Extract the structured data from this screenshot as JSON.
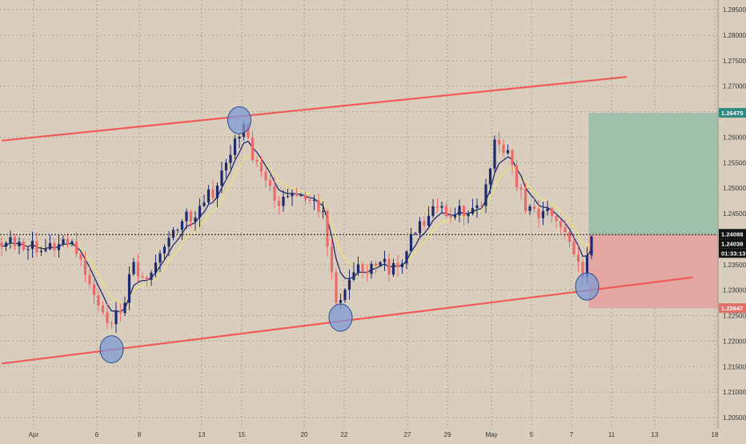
{
  "chart_data": {
    "type": "candlestick",
    "instrument_note": "",
    "x_axis": {
      "tick_labels": [
        "Apr",
        "6",
        "8",
        "13",
        "15",
        "20",
        "22",
        "27",
        "29",
        "May",
        "5",
        "7",
        "11",
        "13",
        "18"
      ]
    },
    "y_axis": {
      "range": [
        1.2025,
        1.2905
      ],
      "tick_labels": [
        "1.28500",
        "1.28000",
        "1.27500",
        "1.27000",
        "1.26500",
        "1.26000",
        "1.25500",
        "1.25000",
        "1.24500",
        "1.24000",
        "1.23500",
        "1.23000",
        "1.22500",
        "1.22000",
        "1.21500",
        "1.21000",
        "1.20500"
      ],
      "tick_values": [
        1.285,
        1.28,
        1.275,
        1.27,
        1.265,
        1.26,
        1.255,
        1.25,
        1.245,
        1.24,
        1.235,
        1.23,
        1.225,
        1.22,
        1.215,
        1.21,
        1.205
      ]
    },
    "price_labels": {
      "target": "1.26475",
      "current": "1.24088",
      "last": "1.24038",
      "countdown": "01:33:13",
      "stop": "1.22647"
    },
    "levels": {
      "target": 1.26475,
      "current": 1.24088,
      "stop": 1.22647
    },
    "channel_lines": [
      {
        "name": "upper",
        "start": [
          0,
          1.2593
        ],
        "end": [
          142,
          1.2718
        ]
      },
      {
        "name": "lower",
        "start": [
          0,
          1.2156
        ],
        "end": [
          157,
          1.2325
        ]
      }
    ],
    "marked_points": [
      {
        "name": "top",
        "bar": 54,
        "price": 1.2633
      },
      {
        "name": "low-1",
        "bar": 25,
        "price": 1.2184
      },
      {
        "name": "low-2",
        "bar": 77,
        "price": 1.2246
      },
      {
        "name": "low-3",
        "bar": 133,
        "price": 1.2307
      }
    ],
    "position": {
      "entry": 1.24088,
      "target": 1.26475,
      "stop": 1.22647,
      "start_bar": 133,
      "end_bar": 166
    },
    "anchors": [
      [
        0,
        1.2385
      ],
      [
        4,
        1.2395
      ],
      [
        10,
        1.238
      ],
      [
        15,
        1.239
      ],
      [
        18,
        1.236
      ],
      [
        21,
        1.229
      ],
      [
        24,
        1.2235
      ],
      [
        27,
        1.2255
      ],
      [
        30,
        1.2355
      ],
      [
        33,
        1.232
      ],
      [
        37,
        1.2385
      ],
      [
        41,
        1.2435
      ],
      [
        45,
        1.2465
      ],
      [
        49,
        1.2505
      ],
      [
        52,
        1.2565
      ],
      [
        55,
        1.2625
      ],
      [
        57,
        1.2555
      ],
      [
        60,
        1.2515
      ],
      [
        63,
        1.2465
      ],
      [
        67,
        1.2485
      ],
      [
        70,
        1.2475
      ],
      [
        73,
        1.2455
      ],
      [
        76,
        1.2275
      ],
      [
        80,
        1.2335
      ],
      [
        85,
        1.2348
      ],
      [
        90,
        1.2345
      ],
      [
        95,
        1.2435
      ],
      [
        100,
        1.2465
      ],
      [
        105,
        1.2445
      ],
      [
        109,
        1.2465
      ],
      [
        112,
        1.2595
      ],
      [
        116,
        1.2545
      ],
      [
        119,
        1.2455
      ],
      [
        123,
        1.2455
      ],
      [
        126,
        1.2435
      ],
      [
        129,
        1.2395
      ],
      [
        132,
        1.2325
      ],
      [
        134,
        1.2405
      ]
    ],
    "series": [
      {
        "name": "",
        "color": "#1f2a6e"
      },
      {
        "name": "",
        "color": "#e9e27a"
      }
    ],
    "colors": {
      "up": "#1f2a6e",
      "down": "#ee6a6a",
      "channel": "#f25a5a",
      "target_zone": "#9fbfa8",
      "stop_zone": "#e3a6a0",
      "target_label": "#2e8b83",
      "stop_label": "#e07068",
      "circle_fill": "#7c99d6",
      "circle_stroke": "#2d4a9a"
    }
  }
}
